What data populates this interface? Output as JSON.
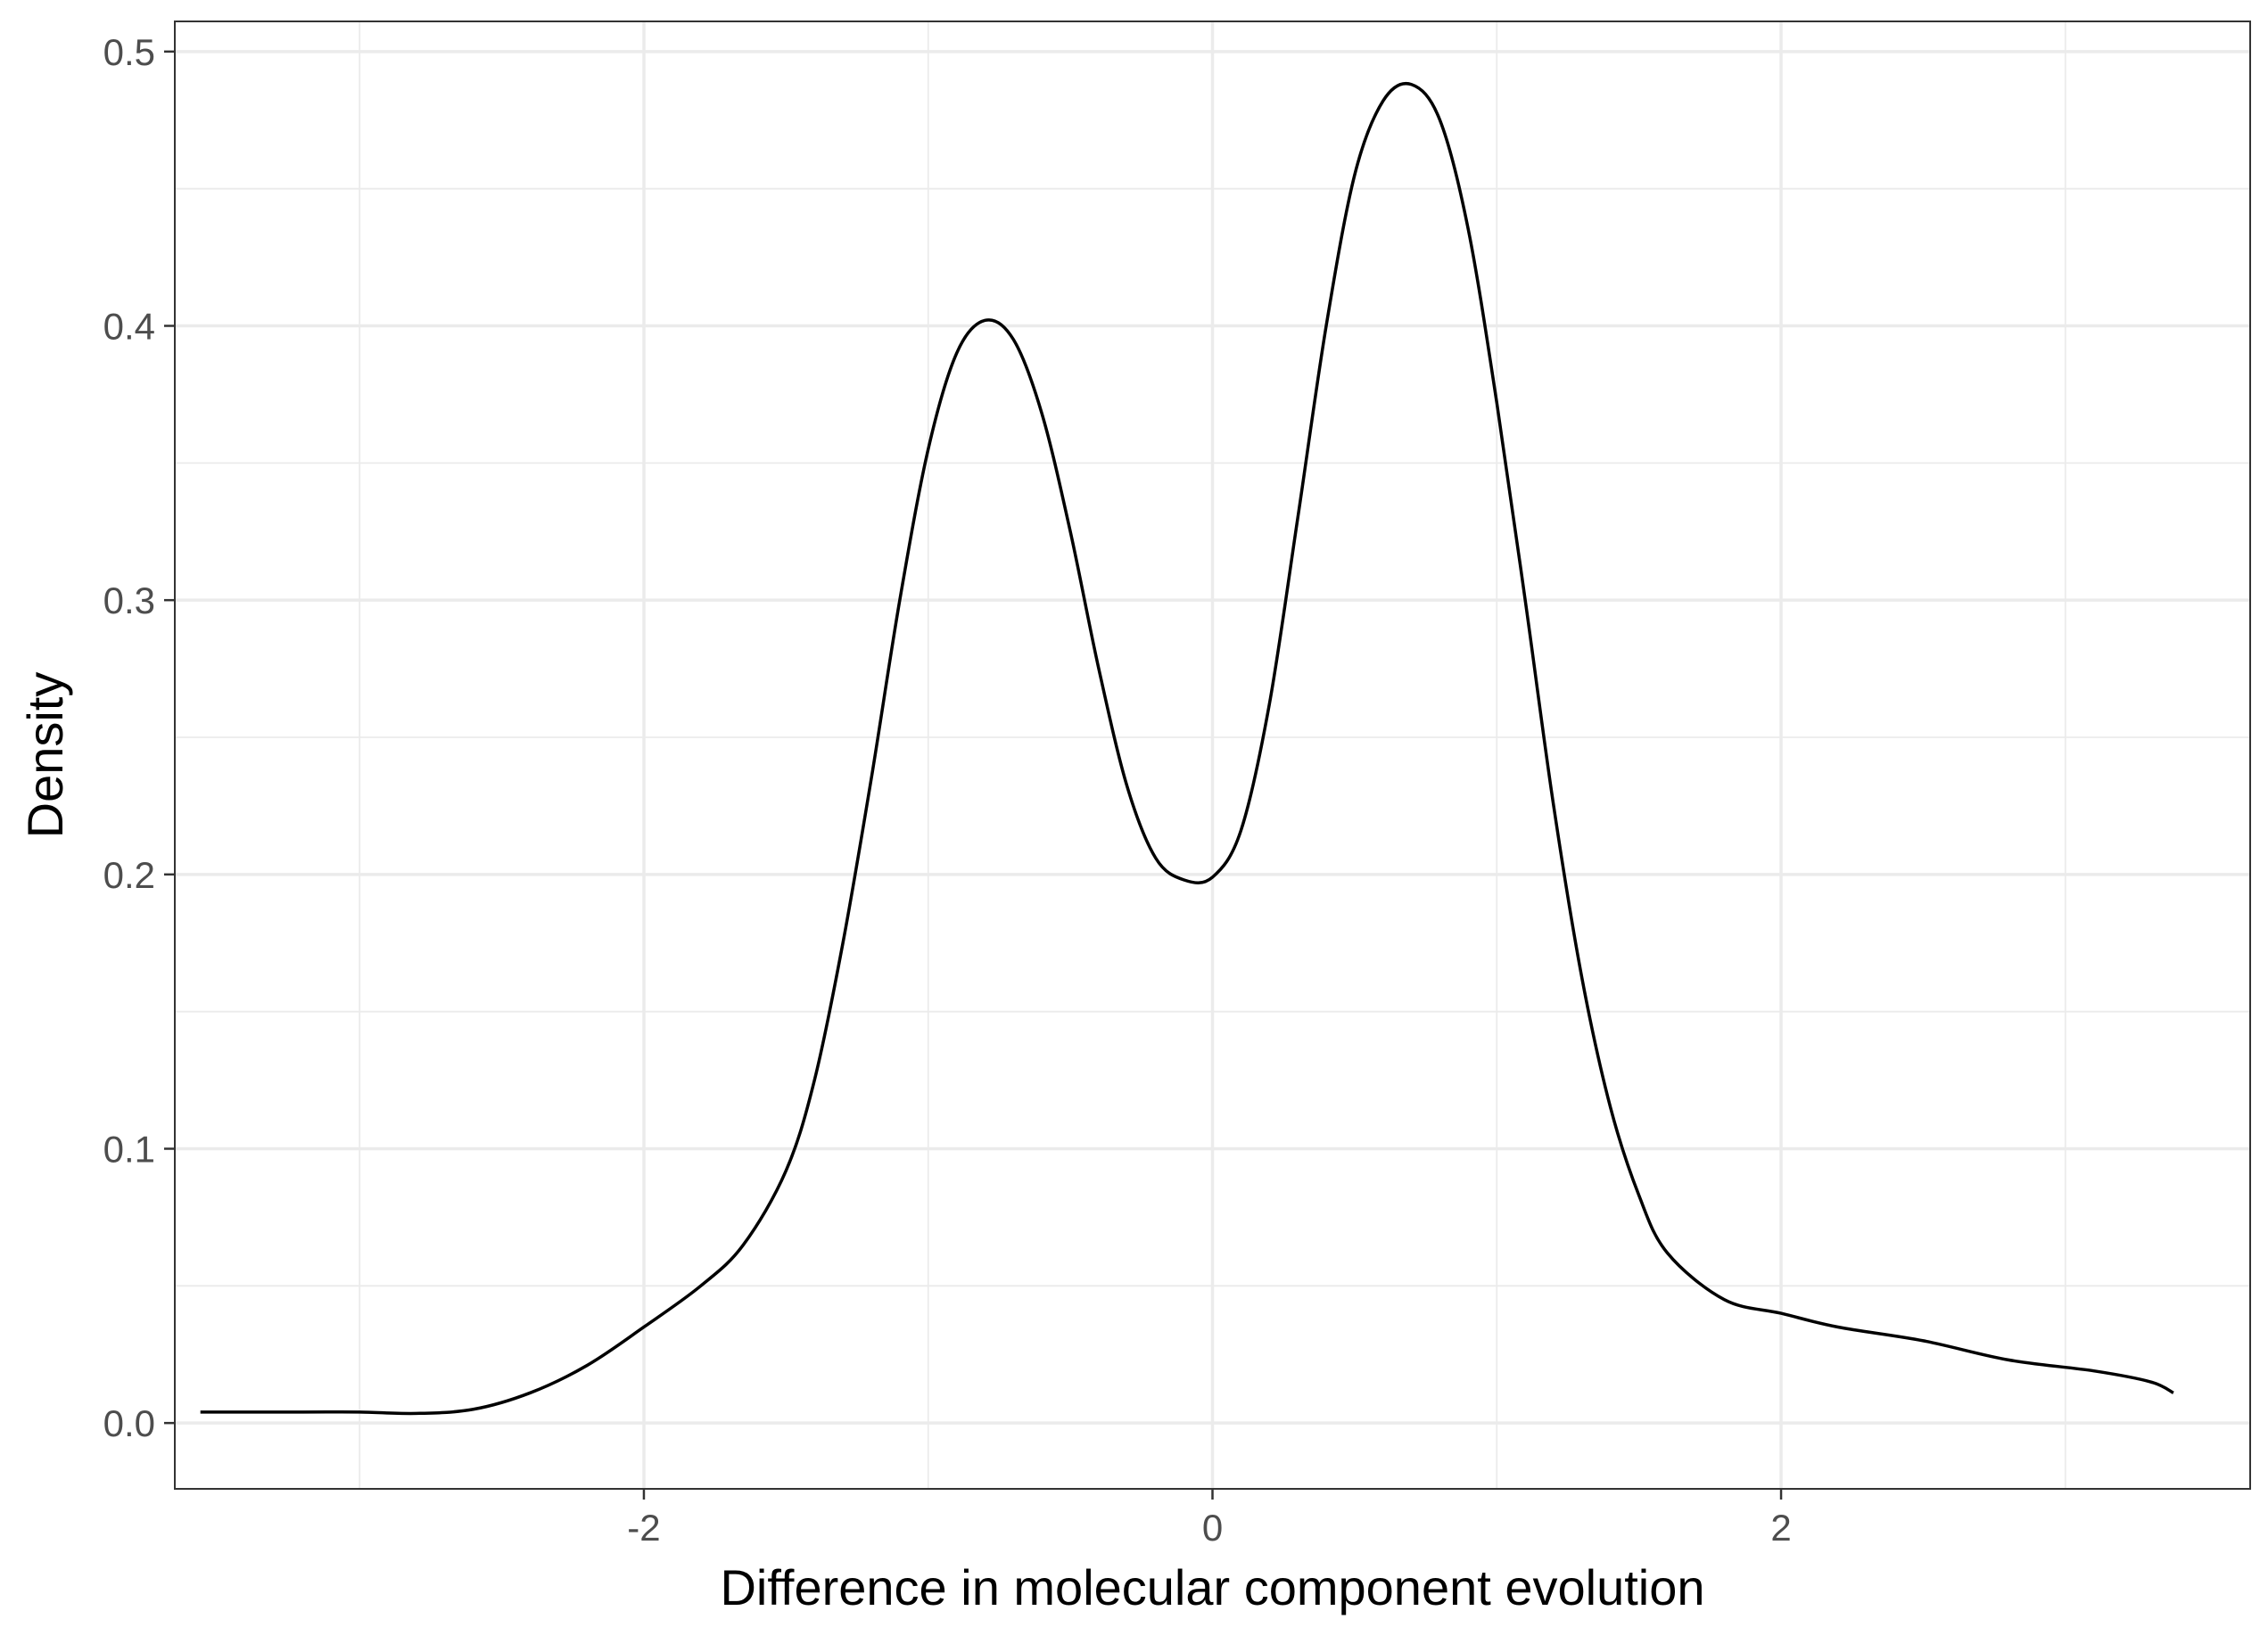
{
  "chart_data": {
    "type": "line",
    "title": "",
    "xlabel": "Difference in molecular component evolution",
    "ylabel": "Density",
    "xlim": [
      -3.65,
      3.65
    ],
    "ylim": [
      -0.024,
      0.511
    ],
    "x_ticks": [
      -2,
      0,
      2
    ],
    "x_tick_labels": [
      "-2",
      "0",
      "2"
    ],
    "x_minor_ticks": [
      -3,
      -1,
      1,
      3
    ],
    "y_ticks": [
      0.0,
      0.1,
      0.2,
      0.3,
      0.4,
      0.5
    ],
    "y_tick_labels": [
      "0.0",
      "0.1",
      "0.2",
      "0.3",
      "0.4",
      "0.5"
    ],
    "y_minor_ticks": [
      0.05,
      0.15,
      0.25,
      0.35,
      0.45
    ],
    "grid": true,
    "legend": "none",
    "series": [
      {
        "color": "#000000",
        "points": [
          [
            -3.56,
            0.004
          ],
          [
            -3.2,
            0.004
          ],
          [
            -3.0,
            0.004
          ],
          [
            -2.8,
            0.0035
          ],
          [
            -2.6,
            0.005
          ],
          [
            -2.4,
            0.011
          ],
          [
            -2.2,
            0.021
          ],
          [
            -2.0,
            0.035
          ],
          [
            -1.8,
            0.05
          ],
          [
            -1.65,
            0.065
          ],
          [
            -1.5,
            0.092
          ],
          [
            -1.4,
            0.125
          ],
          [
            -1.3,
            0.175
          ],
          [
            -1.2,
            0.235
          ],
          [
            -1.1,
            0.3
          ],
          [
            -1.0,
            0.355
          ],
          [
            -0.9,
            0.39
          ],
          [
            -0.8,
            0.402
          ],
          [
            -0.7,
            0.395
          ],
          [
            -0.6,
            0.368
          ],
          [
            -0.5,
            0.325
          ],
          [
            -0.4,
            0.275
          ],
          [
            -0.3,
            0.232
          ],
          [
            -0.2,
            0.206
          ],
          [
            -0.1,
            0.198
          ],
          [
            0.0,
            0.199
          ],
          [
            0.1,
            0.216
          ],
          [
            0.2,
            0.262
          ],
          [
            0.3,
            0.33
          ],
          [
            0.4,
            0.4
          ],
          [
            0.5,
            0.455
          ],
          [
            0.6,
            0.482
          ],
          [
            0.7,
            0.488
          ],
          [
            0.8,
            0.475
          ],
          [
            0.9,
            0.435
          ],
          [
            1.0,
            0.372
          ],
          [
            1.1,
            0.3
          ],
          [
            1.2,
            0.225
          ],
          [
            1.3,
            0.162
          ],
          [
            1.4,
            0.115
          ],
          [
            1.5,
            0.083
          ],
          [
            1.6,
            0.062
          ],
          [
            1.8,
            0.045
          ],
          [
            2.0,
            0.04
          ],
          [
            2.2,
            0.035
          ],
          [
            2.5,
            0.03
          ],
          [
            2.8,
            0.023
          ],
          [
            3.1,
            0.019
          ],
          [
            3.3,
            0.015
          ],
          [
            3.38,
            0.011
          ]
        ]
      }
    ]
  }
}
